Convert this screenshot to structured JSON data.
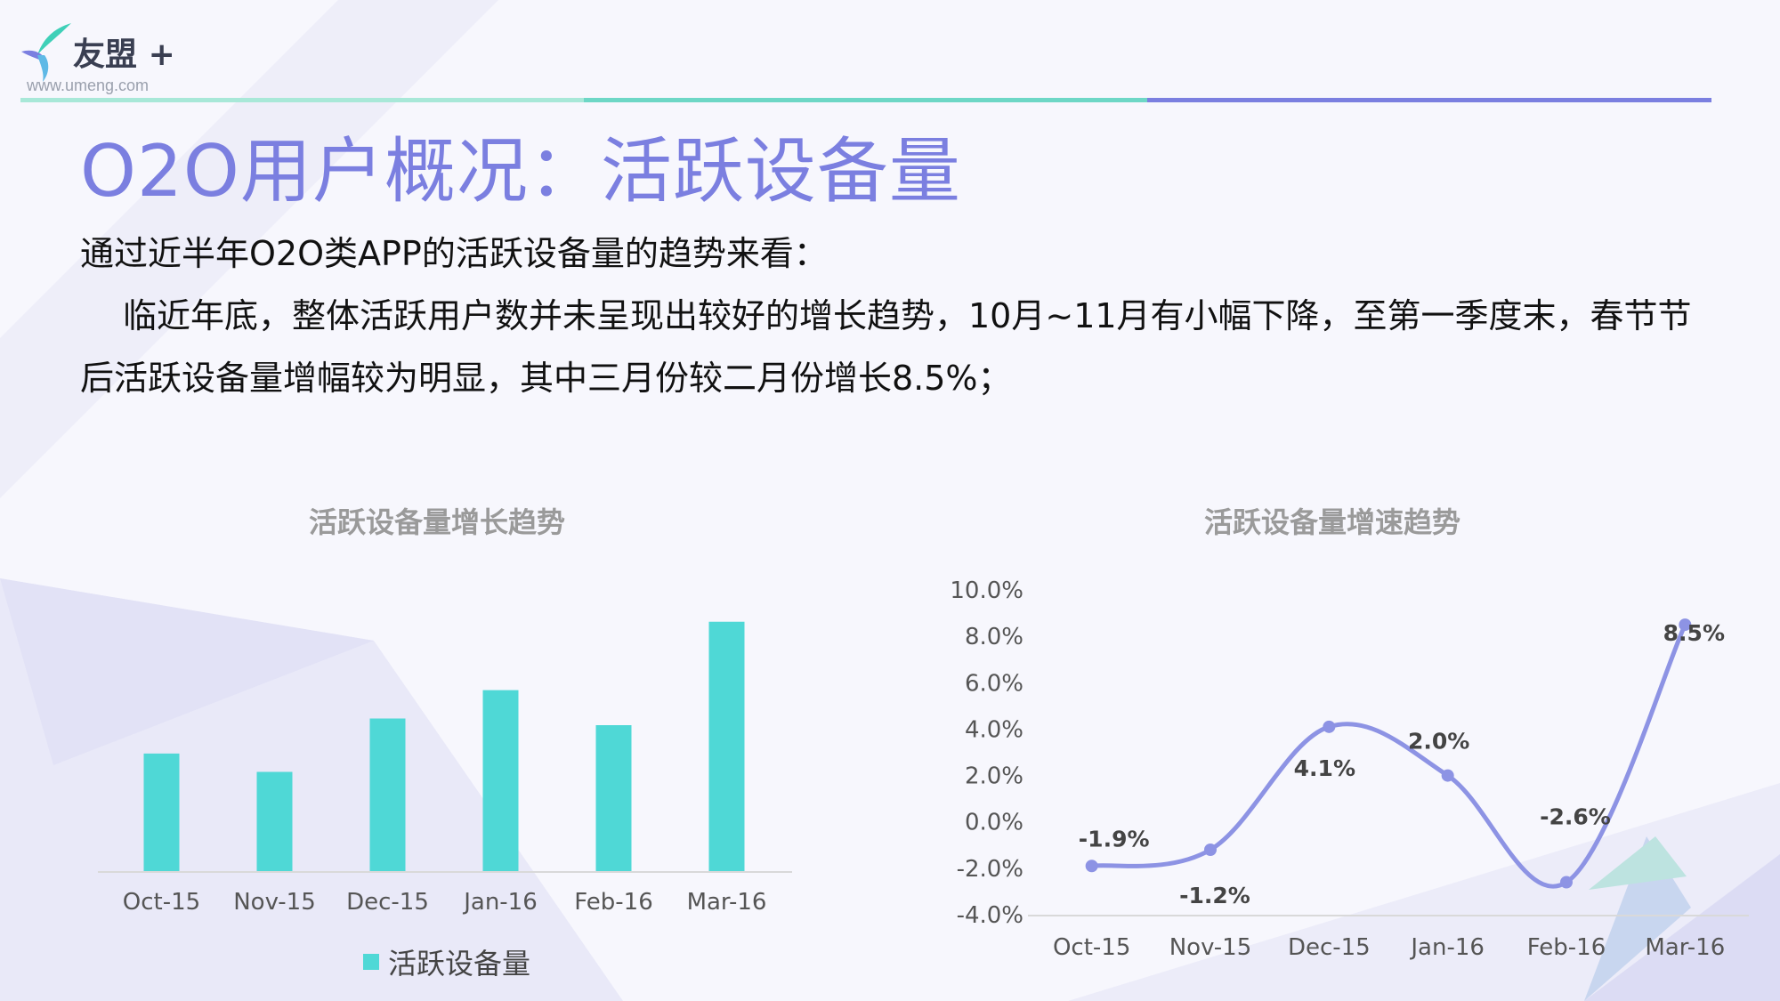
{
  "logo": {
    "name": "友盟",
    "plus": "+",
    "url": "www.umeng.com"
  },
  "header": {
    "title": "O2O用户概况：活跃设备量",
    "rule_colors": [
      "#a8e8d8",
      "#6ed7c6",
      "#7b7fe0"
    ]
  },
  "intro": {
    "line1": "通过近半年O2O类APP的活跃设备量的趋势来看：",
    "line2": "临近年底，整体活跃用户数并未呈现出较好的增长趋势，10月~11月有小幅下降，至第一季度末，春节节后活跃设备量增幅较为明显，其中三月份较二月份增长8.5%；"
  },
  "colors": {
    "accent": "#7b7fe0",
    "bar": "#4fd8d6",
    "line": "#8d93e4",
    "axis": "#d9d9d9"
  },
  "chart_data": [
    {
      "type": "bar",
      "title": "活跃设备量增长趋势",
      "categories": [
        "Oct-15",
        "Nov-15",
        "Dec-15",
        "Jan-16",
        "Feb-16",
        "Mar-16"
      ],
      "series": [
        {
          "name": "活跃设备量",
          "values": [
            3.55,
            3.0,
            4.6,
            5.45,
            4.4,
            7.5
          ]
        }
      ],
      "ylim": [
        0,
        8
      ],
      "y_axis_shown": false,
      "grid": false,
      "legend_position": "bottom"
    },
    {
      "type": "line",
      "title": "活跃设备量增速趋势",
      "categories": [
        "Oct-15",
        "Nov-15",
        "Dec-15",
        "Jan-16",
        "Feb-16",
        "Mar-16"
      ],
      "series": [
        {
          "values": [
            -1.9,
            -1.2,
            4.1,
            2.0,
            -2.6,
            8.5
          ]
        }
      ],
      "data_labels": [
        "-1.9%",
        "-1.2%",
        "4.1%",
        "2.0%",
        "-2.6%",
        "8.5%"
      ],
      "yticks": [
        "10.0%",
        "8.0%",
        "6.0%",
        "4.0%",
        "2.0%",
        "0.0%",
        "-2.0%",
        "-4.0%"
      ],
      "ylim": [
        -4,
        10
      ],
      "smooth": true,
      "grid": false
    }
  ]
}
